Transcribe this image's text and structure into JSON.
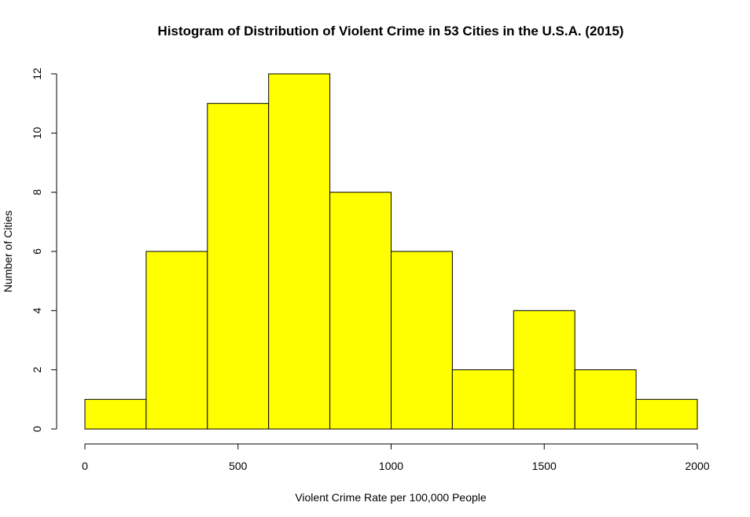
{
  "chart_data": {
    "type": "bar",
    "title": "Histogram of Distribution of Violent Crime in 53 Cities in the U.S.A. (2015)",
    "xlabel": "Violent Crime Rate per 100,000 People",
    "ylabel": "Number of Cities",
    "bins": [
      {
        "from": 0,
        "to": 200,
        "count": 1
      },
      {
        "from": 200,
        "to": 400,
        "count": 6
      },
      {
        "from": 400,
        "to": 600,
        "count": 11
      },
      {
        "from": 600,
        "to": 800,
        "count": 12
      },
      {
        "from": 800,
        "to": 1000,
        "count": 8
      },
      {
        "from": 1000,
        "to": 1200,
        "count": 6
      },
      {
        "from": 1200,
        "to": 1400,
        "count": 2
      },
      {
        "from": 1400,
        "to": 1600,
        "count": 4
      },
      {
        "from": 1600,
        "to": 1800,
        "count": 2
      },
      {
        "from": 1800,
        "to": 2000,
        "count": 1
      }
    ],
    "xlim": [
      0,
      2000
    ],
    "ylim": [
      0,
      12
    ],
    "x_ticks": [
      0,
      500,
      1000,
      1500,
      2000
    ],
    "y_ticks": [
      0,
      2,
      4,
      6,
      8,
      10,
      12
    ],
    "bar_color": "#ffff00",
    "grid": false
  }
}
